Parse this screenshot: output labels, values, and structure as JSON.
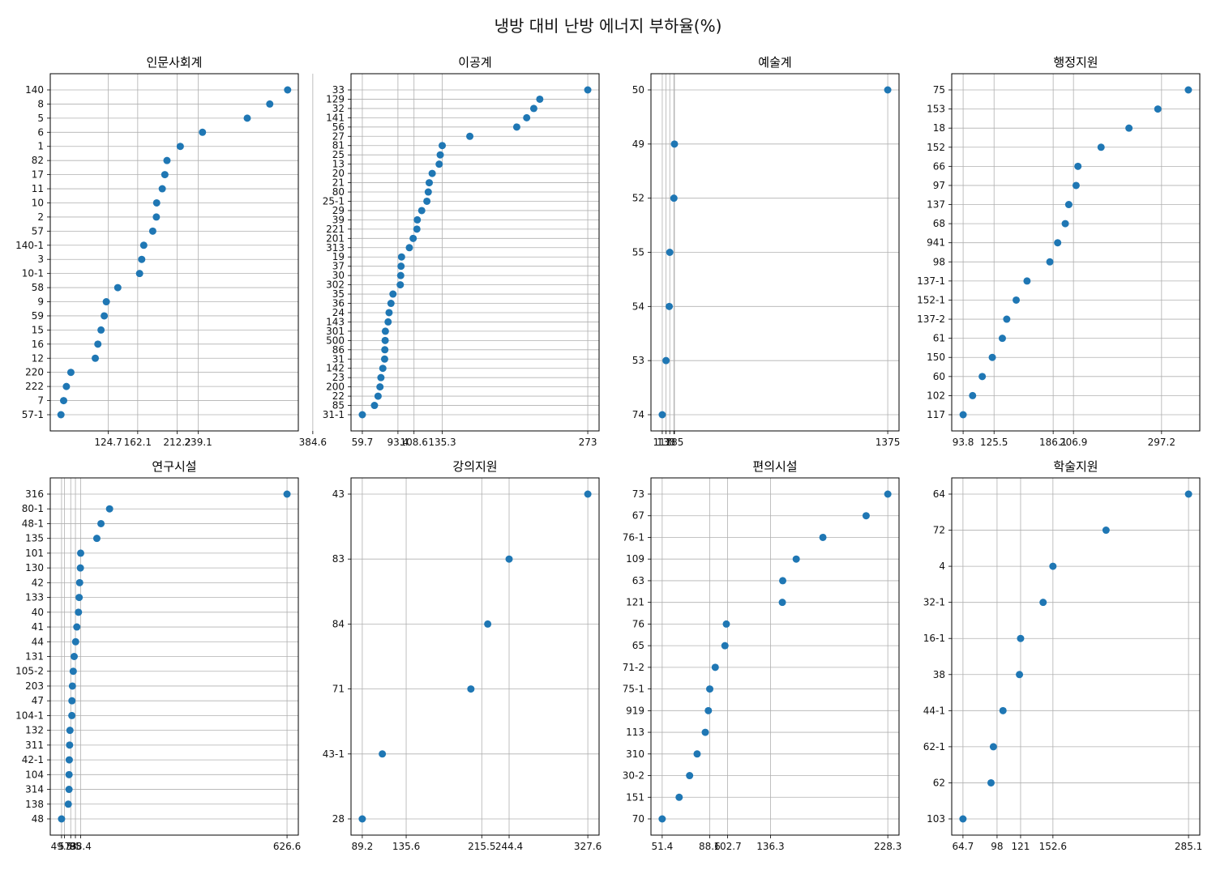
{
  "figure": {
    "suptitle": "냉방 대비 난방 에너지 부하율(%)"
  },
  "chart_data": [
    {
      "type": "scatter",
      "title": "인문사회계",
      "categories": [
        "57-1",
        "7",
        "222",
        "220",
        "12",
        "16",
        "15",
        "59",
        "9",
        "58",
        "10-1",
        "3",
        "140-1",
        "57",
        "2",
        "10",
        "11",
        "17",
        "82",
        "1",
        "6",
        "5",
        "8",
        "140"
      ],
      "values": [
        64.6,
        68.0,
        71.5,
        77.2,
        108.2,
        111.5,
        115.5,
        119.6,
        122.2,
        136.8,
        164.5,
        167.2,
        169.8,
        181.2,
        185.8,
        186.2,
        193.3,
        196.6,
        199.3,
        216.2,
        244.4,
        301.3,
        329.9,
        352.6
      ],
      "xticks": [
        124.7,
        162.1,
        212.2,
        239.1,
        384.6
      ],
      "xlim": [
        51.0,
        366.2
      ],
      "grid": true
    },
    {
      "type": "scatter",
      "title": "이공계",
      "categories": [
        "31-1",
        "85",
        "22",
        "200",
        "23",
        "142",
        "31",
        "86",
        "500",
        "301",
        "143",
        "24",
        "36",
        "35",
        "302",
        "30",
        "37",
        "19",
        "313",
        "201",
        "221",
        "39",
        "29",
        "25-1",
        "80",
        "21",
        "20",
        "13",
        "25",
        "81",
        "27",
        "56",
        "141",
        "32",
        "129",
        "33"
      ],
      "values": [
        59.7,
        71.2,
        74.6,
        76.4,
        77.3,
        79.1,
        80.8,
        81.0,
        81.3,
        81.5,
        84.1,
        85.0,
        86.8,
        88.7,
        95.6,
        96.0,
        96.3,
        96.8,
        104.2,
        107.8,
        111.3,
        111.7,
        115.9,
        120.8,
        122.1,
        123.0,
        125.8,
        132.4,
        133.4,
        135.3,
        161.4,
        205.8,
        215.2,
        221.9,
        227.6,
        273.0
      ],
      "xticks": [
        59.7,
        93.4,
        108.6,
        135.3,
        273.0
      ],
      "xlim": [
        49.0,
        283.7
      ],
      "grid": true
    },
    {
      "type": "scatter",
      "title": "예술계",
      "categories": [
        "74",
        "53",
        "54",
        "55",
        "52",
        "49",
        "50"
      ],
      "values": [
        117,
        138,
        156,
        159,
        182,
        185,
        1375
      ],
      "xticks": [
        117,
        138,
        159,
        182,
        185,
        1375
      ],
      "xticklabels": [
        "117",
        "138",
        "",
        "",
        "185",
        "1375"
      ],
      "xlim": [
        54,
        1438
      ],
      "grid": true
    },
    {
      "type": "scatter",
      "title": "행정지원",
      "categories": [
        "117",
        "102",
        "60",
        "150",
        "61",
        "137-2",
        "152-1",
        "137-1",
        "98",
        "941",
        "68",
        "137",
        "97",
        "66",
        "152",
        "18",
        "153",
        "75"
      ],
      "values": [
        93.8,
        103.5,
        113.4,
        123.7,
        134.0,
        138.5,
        148.2,
        159.3,
        182.7,
        190.7,
        198.5,
        202.1,
        209.6,
        211.5,
        235.2,
        263.8,
        293.4,
        324.7
      ],
      "xticks": [
        93.8,
        125.5,
        186.1,
        206.9,
        297.2
      ],
      "xticklabels": [
        "93.8",
        "125.5",
        "186.1",
        "206.9",
        "297.2"
      ],
      "xlim": [
        82.1,
        336.4
      ],
      "grid": true
    },
    {
      "type": "scatter",
      "title": "연구시설",
      "categories": [
        "48",
        "138",
        "314",
        "104",
        "42-1",
        "311",
        "132",
        "104-1",
        "47",
        "203",
        "105-2",
        "131",
        "44",
        "41",
        "40",
        "133",
        "42",
        "130",
        "101",
        "135",
        "48-1",
        "80-1",
        "316"
      ],
      "values": [
        49.5,
        66.7,
        68.6,
        68.7,
        69.2,
        70.1,
        71.0,
        75.8,
        76.1,
        77.3,
        79.4,
        81.8,
        85.5,
        88.6,
        92.8,
        94.5,
        95.8,
        97.7,
        98.4,
        139.8,
        150.4,
        172.4,
        626.6
      ],
      "xticks": [
        49.5,
        57,
        73,
        85,
        98.4,
        626.6
      ],
      "xticklabels": [
        "49.5",
        "57",
        "73",
        "85",
        "98.4",
        "626.6"
      ],
      "xlim": [
        20.6,
        655.5
      ],
      "grid": true
    },
    {
      "type": "scatter",
      "title": "강의지원",
      "categories": [
        "28",
        "43-1",
        "71",
        "84",
        "83",
        "43"
      ],
      "values": [
        89.2,
        110.4,
        204.0,
        221.8,
        244.4,
        327.6
      ],
      "xticks": [
        89.2,
        135.6,
        215.5,
        244.4,
        327.6
      ],
      "xlim": [
        77.3,
        339.5
      ],
      "grid": true
    },
    {
      "type": "scatter",
      "title": "편의시설",
      "categories": [
        "70",
        "151",
        "30-2",
        "310",
        "113",
        "919",
        "75-1",
        "71-2",
        "65",
        "76",
        "121",
        "63",
        "109",
        "76-1",
        "67",
        "73"
      ],
      "values": [
        51.4,
        64.7,
        72.9,
        78.8,
        85.2,
        87.6,
        88.7,
        93.0,
        100.6,
        101.7,
        145.6,
        145.9,
        156.5,
        177.4,
        211.3,
        228.3
      ],
      "xticks": [
        51.4,
        88.6,
        102.7,
        136.3,
        228.3
      ],
      "xlim": [
        42.6,
        237.1
      ],
      "grid": true
    },
    {
      "type": "scatter",
      "title": "학술지원",
      "categories": [
        "103",
        "62",
        "62-1",
        "44-1",
        "38",
        "16-1",
        "32-1",
        "4",
        "72",
        "64"
      ],
      "values": [
        64.7,
        92.1,
        94.4,
        103.8,
        119.9,
        121.0,
        143.0,
        152.6,
        204.5,
        285.1
      ],
      "xticks": [
        64.7,
        98.0,
        121.0,
        152.6,
        285.1
      ],
      "xlim": [
        53.7,
        296.1
      ],
      "grid": true
    }
  ]
}
